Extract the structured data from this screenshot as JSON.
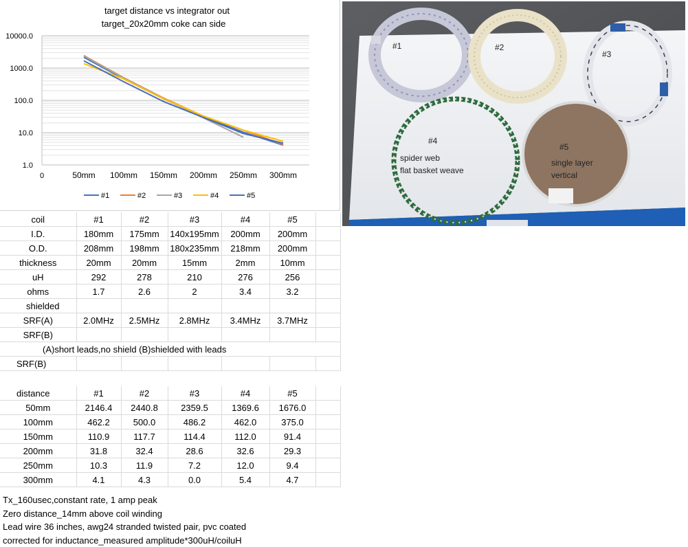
{
  "chart_data": {
    "type": "line",
    "title": "target distance vs integrator out",
    "subtitle": "target_20x20mm coke can side",
    "categories": [
      "50mm",
      "100mm",
      "150mm",
      "200mm",
      "250mm",
      "300mm"
    ],
    "y_scale": "log",
    "ylim": [
      1.0,
      10000.0
    ],
    "y_ticks": [
      "10000.0",
      "1000.0",
      "100.0",
      "10.0",
      "1.0"
    ],
    "x_zero_label": "0",
    "grid": true,
    "legend_position": "bottom",
    "series": [
      {
        "name": "#1",
        "color": "#4472c4",
        "values": [
          2146.4,
          462.2,
          110.9,
          31.8,
          10.3,
          4.1
        ]
      },
      {
        "name": "#2",
        "color": "#ed7d31",
        "values": [
          2440.8,
          500.0,
          117.7,
          32.4,
          11.9,
          4.3
        ]
      },
      {
        "name": "#3",
        "color": "#a5a5a5",
        "values": [
          2359.5,
          486.2,
          114.4,
          28.6,
          7.2,
          null
        ]
      },
      {
        "name": "#4",
        "color": "#ffc000",
        "values": [
          1369.6,
          462.0,
          112.0,
          32.6,
          12.0,
          5.4
        ]
      },
      {
        "name": "#5",
        "color": "#4a6fb5",
        "values": [
          1676.0,
          375.0,
          91.4,
          29.3,
          9.4,
          4.7
        ]
      }
    ]
  },
  "photo": {
    "labels": {
      "coil1": "#1",
      "coil2": "#2",
      "coil3": "#3",
      "coil4": "#4",
      "coil4_desc1": "spider web",
      "coil4_desc2": "flat basket weave",
      "coil5": "#5",
      "coil5_desc1": "single layer",
      "coil5_desc2": "vertical"
    }
  },
  "spec_table": {
    "header": [
      "coil",
      "#1",
      "#2",
      "#3",
      "#4",
      "#5"
    ],
    "rows": [
      [
        "I.D.",
        "180mm",
        "175mm",
        "140x195mm",
        "200mm",
        "200mm"
      ],
      [
        "O.D.",
        "208mm",
        "198mm",
        "180x235mm",
        "218mm",
        "200mm"
      ],
      [
        "thickness",
        "20mm",
        "20mm",
        "15mm",
        "2mm",
        "10mm"
      ],
      [
        "uH",
        "292",
        "278",
        "210",
        "276",
        "256"
      ],
      [
        "ohms",
        "1.7",
        "2.6",
        "2",
        "3.4",
        "3.2"
      ],
      [
        "shielded",
        "",
        "",
        "",
        "",
        ""
      ],
      [
        "SRF(A)",
        "2.0MHz",
        "2.5MHz",
        "2.8MHz",
        "3.4MHz",
        "3.7MHz"
      ],
      [
        "SRF(B)",
        "",
        "",
        "",
        "",
        ""
      ]
    ],
    "note": "(A)short leads,no shield (B)shielded with leads",
    "srf_b_label": "SRF(B)"
  },
  "distance_table": {
    "header": [
      "distance",
      "#1",
      "#2",
      "#3",
      "#4",
      "#5"
    ],
    "rows": [
      [
        "50mm",
        "2146.4",
        "2440.8",
        "2359.5",
        "1369.6",
        "1676.0"
      ],
      [
        "100mm",
        "462.2",
        "500.0",
        "486.2",
        "462.0",
        "375.0"
      ],
      [
        "150mm",
        "110.9",
        "117.7",
        "114.4",
        "112.0",
        "91.4"
      ],
      [
        "200mm",
        "31.8",
        "32.4",
        "28.6",
        "32.6",
        "29.3"
      ],
      [
        "250mm",
        "10.3",
        "11.9",
        "7.2",
        "12.0",
        "9.4"
      ],
      [
        "300mm",
        "4.1",
        "4.3",
        "0.0",
        "5.4",
        "4.7"
      ]
    ]
  },
  "notes": [
    "Tx_160usec,constant rate, 1 amp peak",
    "Zero distance_14mm above coil winding",
    "Lead wire  36 inches, awg24 stranded twisted pair, pvc coated",
    "corrected for inductance_measured amplitude*300uH/coiluH"
  ]
}
